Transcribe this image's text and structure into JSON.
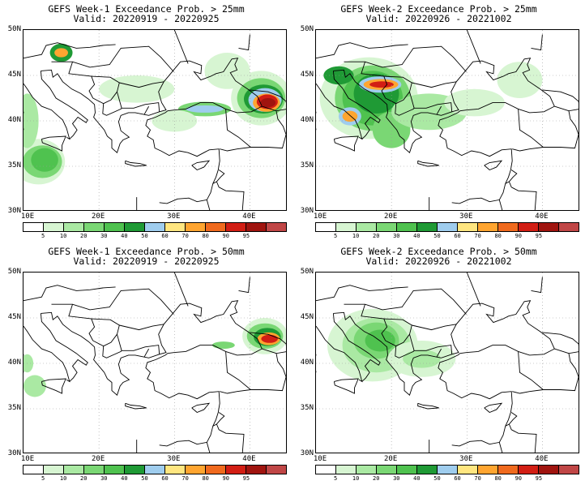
{
  "panels": [
    {
      "title": "GEFS Week-1 Exceedance Prob. > 25mm",
      "valid": "Valid: 20220919 - 20220925",
      "variant": "w1_25"
    },
    {
      "title": "GEFS Week-2 Exceedance Prob. > 25mm",
      "valid": "Valid: 20220926 - 20221002",
      "variant": "w2_25"
    },
    {
      "title": "GEFS Week-1 Exceedance Prob. > 50mm",
      "valid": "Valid: 20220919 - 20220925",
      "variant": "w1_50"
    },
    {
      "title": "GEFS Week-2 Exceedance Prob. > 50mm",
      "valid": "Valid: 20220926 - 20221002",
      "variant": "w2_50"
    }
  ],
  "lat_labels": [
    "50N",
    "45N",
    "40N",
    "35N",
    "30N"
  ],
  "lon_labels": [
    "10E",
    "20E",
    "30E",
    "40E"
  ],
  "colorbar": {
    "labels": [
      "5",
      "10",
      "20",
      "30",
      "40",
      "50",
      "60",
      "70",
      "80",
      "90",
      "95"
    ],
    "colors": [
      "#ffffff",
      "#d7f5d2",
      "#aae9a3",
      "#7ad774",
      "#4fc24f",
      "#2aa23a",
      "#0f7d26",
      "#a5d0f0",
      "#fff08a",
      "#ffb43c",
      "#f07020",
      "#d22514",
      "#a50f0f",
      "#b23a3a"
    ]
  },
  "legend_colors": [
    "#ffffff",
    "#d7f5d2",
    "#aae9a3",
    "#7ad774",
    "#4fc24f",
    "#1f9a35",
    "#9fcdee",
    "#ffe680",
    "#ffa530",
    "#f06a1e",
    "#d21e14",
    "#a0140f",
    "#c04646"
  ]
}
